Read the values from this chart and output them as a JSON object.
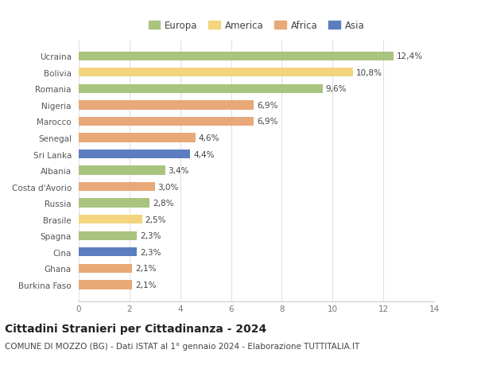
{
  "countries": [
    "Ucraina",
    "Bolivia",
    "Romania",
    "Nigeria",
    "Marocco",
    "Senegal",
    "Sri Lanka",
    "Albania",
    "Costa d'Avorio",
    "Russia",
    "Brasile",
    "Spagna",
    "Cina",
    "Ghana",
    "Burkina Faso"
  ],
  "values": [
    12.4,
    10.8,
    9.6,
    6.9,
    6.9,
    4.6,
    4.4,
    3.4,
    3.0,
    2.8,
    2.5,
    2.3,
    2.3,
    2.1,
    2.1
  ],
  "labels": [
    "12,4%",
    "10,8%",
    "9,6%",
    "6,9%",
    "6,9%",
    "4,6%",
    "4,4%",
    "3,4%",
    "3,0%",
    "2,8%",
    "2,5%",
    "2,3%",
    "2,3%",
    "2,1%",
    "2,1%"
  ],
  "continents": [
    "Europa",
    "America",
    "Europa",
    "Africa",
    "Africa",
    "Africa",
    "Asia",
    "Europa",
    "Africa",
    "Europa",
    "America",
    "Europa",
    "Asia",
    "Africa",
    "Africa"
  ],
  "colors": {
    "Europa": "#a8c47e",
    "America": "#f2d57e",
    "Africa": "#e8a878",
    "Asia": "#5c7ec0"
  },
  "legend_order": [
    "Europa",
    "America",
    "Africa",
    "Asia"
  ],
  "xlim": [
    0,
    14
  ],
  "xticks": [
    0,
    2,
    4,
    6,
    8,
    10,
    12,
    14
  ],
  "title": "Cittadini Stranieri per Cittadinanza - 2024",
  "subtitle": "COMUNE DI MOZZO (BG) - Dati ISTAT al 1° gennaio 2024 - Elaborazione TUTTITALIA.IT",
  "plot_bg": "#ffffff",
  "fig_bg": "#ffffff",
  "bar_height": 0.55,
  "title_fontsize": 10,
  "subtitle_fontsize": 7.5,
  "label_fontsize": 7.5,
  "tick_fontsize": 7.5,
  "legend_fontsize": 8.5
}
